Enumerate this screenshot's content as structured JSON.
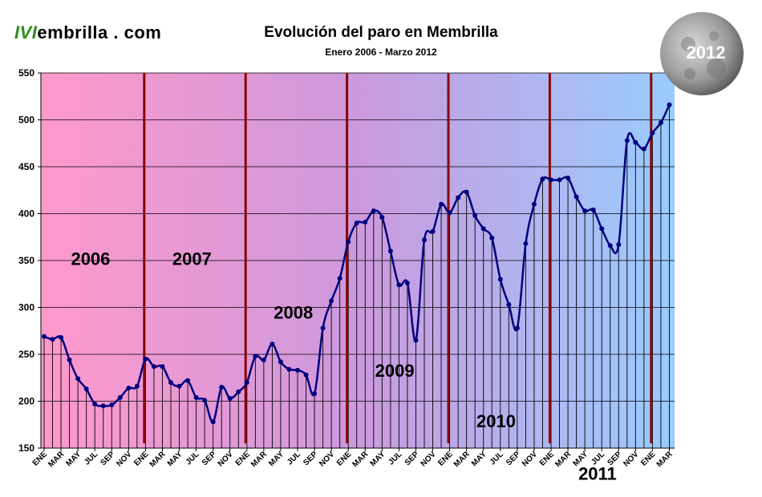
{
  "logo": {
    "mark": "IVI",
    "text": "embrilla . com"
  },
  "moon_badge": {
    "label": "2012",
    "colors": {
      "moon": "#9a9a9a"
    }
  },
  "chart_data": {
    "type": "line",
    "title": "Evolución del paro en Membrilla",
    "subtitle": "Enero 2006 - Marzo 2012",
    "xlabel": "",
    "ylabel": "",
    "ylim": [
      150,
      550
    ],
    "yticks": [
      150,
      200,
      250,
      300,
      350,
      400,
      450,
      500,
      550
    ],
    "grid": true,
    "x_tick_labels": [
      "ENE",
      "MAR",
      "MAY",
      "JUL",
      "SEP",
      "NOV"
    ],
    "year_labels": [
      {
        "year": "2006",
        "value": 352
      },
      {
        "year": "2007",
        "value": 352
      },
      {
        "year": "2008",
        "value": 295
      },
      {
        "year": "2009",
        "value": 233
      },
      {
        "year": "2010",
        "value": 179
      },
      {
        "year": "2011",
        "value": 123
      }
    ],
    "series": [
      {
        "values": [
          269,
          266,
          268,
          244,
          224,
          213,
          197,
          195,
          196,
          204,
          214,
          216,
          245,
          237,
          237,
          220,
          216,
          222,
          204,
          201,
          178,
          215,
          203,
          210,
          220,
          248,
          244,
          261,
          242,
          234,
          233,
          228,
          208,
          278,
          307,
          331,
          370,
          390,
          391,
          403,
          396,
          360,
          324,
          326,
          265,
          372,
          381,
          410,
          401,
          417,
          423,
          398,
          384,
          374,
          330,
          303,
          278,
          368,
          410,
          437,
          436,
          436,
          438,
          418,
          403,
          404,
          384,
          366,
          367,
          478,
          476,
          469,
          486,
          497,
          516
        ]
      }
    ],
    "colors": {
      "line": "#000080",
      "year_divider": "#8b0000",
      "drop_line": "#000000",
      "gradient_start": "#ff99cc",
      "gradient_mid": "#cc99dd",
      "gradient_end": "#99ccff"
    }
  }
}
